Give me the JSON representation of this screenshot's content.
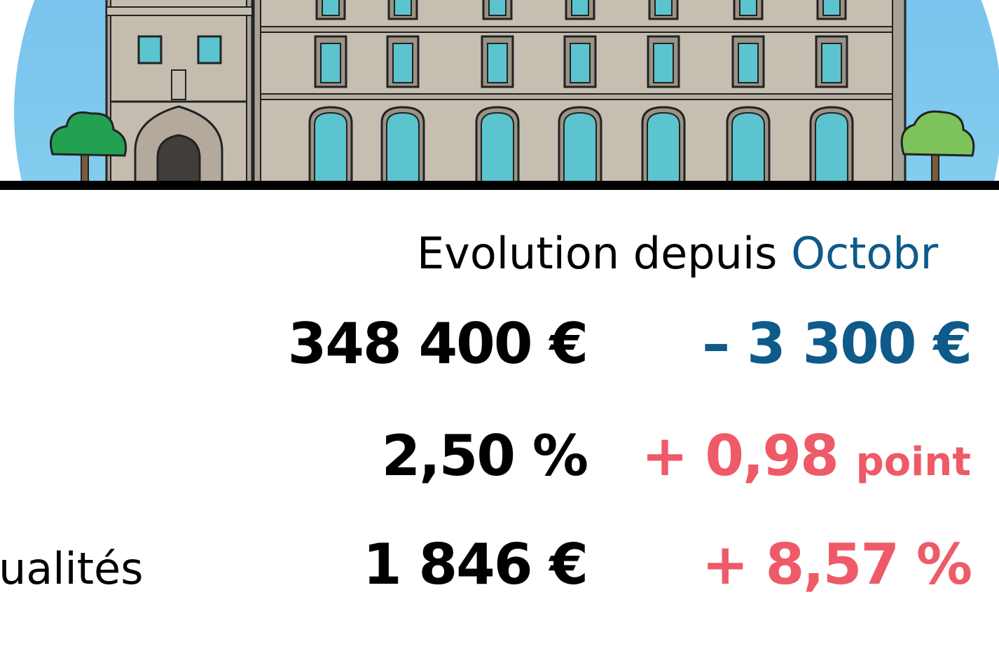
{
  "header": {
    "label": "Evolution depuis",
    "period": "Octobr"
  },
  "rows": [
    {
      "value": "348 400 €",
      "change": "– 3 300 €"
    },
    {
      "value": "2,50 %",
      "change": "+ 0,98",
      "change_unit": "point"
    },
    {
      "label": "ualités",
      "value": "1 846 €",
      "change": "+ 8,57 %"
    }
  ]
}
